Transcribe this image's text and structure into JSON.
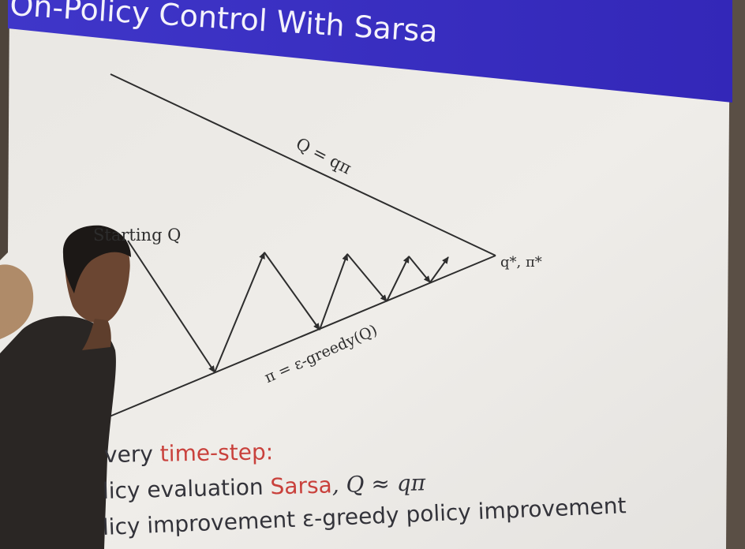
{
  "slide": {
    "title": "On-Policy Control With Sarsa",
    "colors": {
      "header": "#3a2fc4",
      "screen": "#eceae6",
      "highlight": "#c9413c",
      "ink": "#2d2d2d"
    }
  },
  "diagram": {
    "upper_line_label": "Q = qπ",
    "lower_line_label": "π = ε-greedy(Q)",
    "start_label": "Starting Q",
    "optimum_label": "q*, π*"
  },
  "bullets": [
    {
      "prefix": "very ",
      "highlight": "time-step:",
      "suffix": ""
    },
    {
      "prefix": "licy evaluation ",
      "highlight": "Sarsa",
      "suffix": ", Q ≈ qπ"
    },
    {
      "prefix": "licy improvement ",
      "highlight": "",
      "suffix": "ε-greedy policy improvement"
    }
  ]
}
